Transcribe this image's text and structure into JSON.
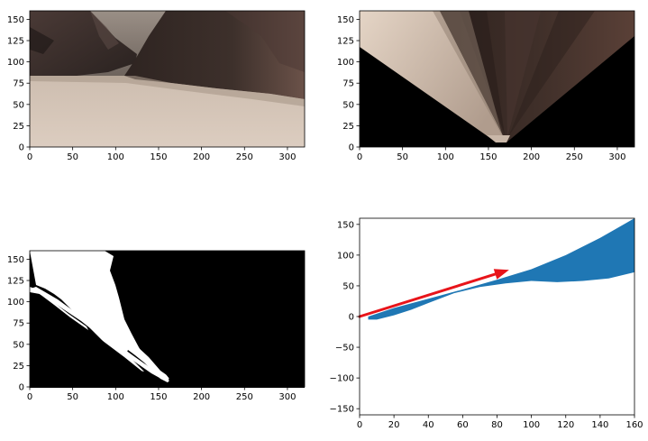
{
  "figure": {
    "background": "#ffffff",
    "panels": [
      {
        "id": "camera_image",
        "kind": "image",
        "xticks": [
          0,
          50,
          100,
          150,
          200,
          250,
          300
        ],
        "yticks": [
          0,
          25,
          50,
          75,
          100,
          125,
          150
        ]
      },
      {
        "id": "warped_image",
        "kind": "image",
        "xticks": [
          0,
          50,
          100,
          150,
          200,
          250,
          300
        ],
        "yticks": [
          0,
          25,
          50,
          75,
          100,
          125,
          150
        ]
      },
      {
        "id": "threshold_image",
        "kind": "image",
        "xticks": [
          0,
          50,
          100,
          150,
          200,
          250,
          300
        ],
        "yticks": [
          0,
          25,
          50,
          75,
          100,
          125,
          150
        ]
      }
    ]
  },
  "chart_data": [
    {
      "type": "image",
      "panel": "camera_image",
      "xlim": [
        0,
        320
      ],
      "ylim": [
        160,
        0
      ]
    },
    {
      "type": "image",
      "panel": "warped_image",
      "xlim": [
        0,
        320
      ],
      "ylim": [
        160,
        0
      ]
    },
    {
      "type": "image",
      "panel": "threshold_image",
      "xlim": [
        0,
        320
      ],
      "ylim": [
        160,
        0
      ]
    },
    {
      "type": "scatter",
      "panel": "rover_coords",
      "xlim": [
        0,
        160
      ],
      "ylim": [
        -160,
        160
      ],
      "xticks": [
        0,
        20,
        40,
        60,
        80,
        100,
        120,
        140,
        160
      ],
      "yticks": [
        -150,
        -100,
        -50,
        0,
        50,
        100,
        150
      ],
      "series": [
        {
          "color": "#1f77b4",
          "region_upper": [
            [
              5,
              0
            ],
            [
              20,
              14
            ],
            [
              40,
              29
            ],
            [
              60,
              44
            ],
            [
              80,
              60
            ],
            [
              100,
              77
            ],
            [
              120,
              100
            ],
            [
              140,
              128
            ],
            [
              160,
              160
            ]
          ],
          "region_lower": [
            [
              5,
              -5
            ],
            [
              10,
              -5
            ],
            [
              20,
              2
            ],
            [
              30,
              11
            ],
            [
              40,
              22
            ],
            [
              55,
              38
            ],
            [
              70,
              48
            ],
            [
              85,
              54
            ],
            [
              100,
              58
            ],
            [
              115,
              56
            ],
            [
              130,
              58
            ],
            [
              145,
              62
            ],
            [
              160,
              72
            ]
          ]
        }
      ],
      "arrow": {
        "color": "#e8141a",
        "from": [
          0,
          0
        ],
        "to": [
          87,
          76
        ]
      }
    }
  ]
}
